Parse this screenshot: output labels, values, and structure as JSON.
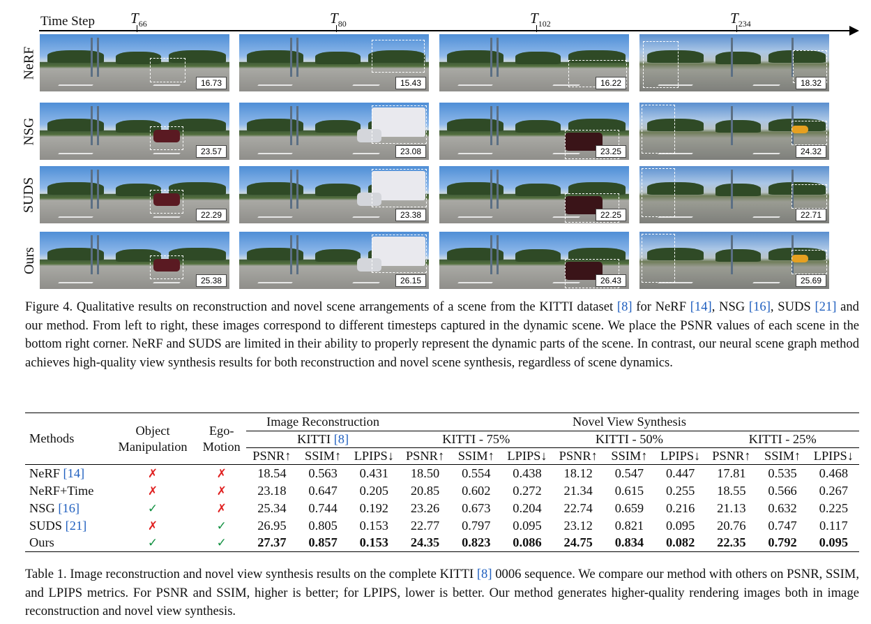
{
  "figure": {
    "axis_label": "Time Step",
    "timesteps": [
      {
        "letter": "T",
        "sub": "66"
      },
      {
        "letter": "T",
        "sub": "80"
      },
      {
        "letter": "T",
        "sub": "102"
      },
      {
        "letter": "T",
        "sub": "234"
      }
    ],
    "rows": [
      {
        "method": "NeRF",
        "psnr": [
          "16.73",
          "15.43",
          "16.22",
          "18.32"
        ]
      },
      {
        "method": "NSG",
        "psnr": [
          "23.57",
          "23.08",
          "23.25",
          "24.32"
        ]
      },
      {
        "method": "SUDS",
        "psnr": [
          "22.29",
          "23.38",
          "22.25",
          "22.71"
        ]
      },
      {
        "method": "Ours",
        "psnr": [
          "25.38",
          "26.15",
          "26.43",
          "25.69"
        ]
      }
    ],
    "caption": {
      "p1": "Figure 4. Qualitative results on reconstruction and novel scene arrangements of a scene from the KITTI dataset ",
      "c1": "[8]",
      "p2": " for NeRF ",
      "c2": "[14]",
      "p3": ", NSG ",
      "c3": "[16]",
      "p4": ", SUDS ",
      "c4": "[21]",
      "p5": " and our method. From left to right, these images correspond to different timesteps captured in the dynamic scene. We place the PSNR values of each scene in the bottom right corner. NeRF and SUDS are limited in their ability to properly represent the dynamic parts of the scene. In contrast, our neural scene graph method achieves high-quality view synthesis results for both reconstruction and novel scene synthesis, regardless of scene dynamics."
    }
  },
  "table": {
    "headers": {
      "methods": "Methods",
      "object_manipulation_1": "Object",
      "object_manipulation_2": "Manipulation",
      "ego_motion_1": "Ego-",
      "ego_motion_2": "Motion",
      "image_reconstruction": "Image Reconstruction",
      "novel_view_synthesis": "Novel View Synthesis",
      "kitti": "KITTI ",
      "kitti_cite": "[8]",
      "kitti_75": "KITTI - 75%",
      "kitti_50": "KITTI - 50%",
      "kitti_25": "KITTI - 25%",
      "psnr": "PSNR↑",
      "ssim": "SSIM↑",
      "lpips": "LPIPS↓"
    },
    "rows": [
      {
        "method": "NeRF ",
        "cite": "[14]",
        "obj": "✗",
        "ego": "✗",
        "values": [
          "18.54",
          "0.563",
          "0.431",
          "18.50",
          "0.554",
          "0.438",
          "18.12",
          "0.547",
          "0.447",
          "17.81",
          "0.535",
          "0.468"
        ]
      },
      {
        "method": "NeRF+Time",
        "cite": "",
        "obj": "✗",
        "ego": "✗",
        "values": [
          "23.18",
          "0.647",
          "0.205",
          "20.85",
          "0.602",
          "0.272",
          "21.34",
          "0.615",
          "0.255",
          "18.55",
          "0.566",
          "0.267"
        ]
      },
      {
        "method": "NSG ",
        "cite": "[16]",
        "obj": "✓",
        "ego": "✗",
        "values": [
          "25.34",
          "0.744",
          "0.192",
          "23.26",
          "0.673",
          "0.204",
          "22.74",
          "0.659",
          "0.216",
          "21.13",
          "0.632",
          "0.225"
        ]
      },
      {
        "method": "SUDS ",
        "cite": "[21]",
        "obj": "✗",
        "ego": "✓",
        "values": [
          "26.95",
          "0.805",
          "0.153",
          "22.77",
          "0.797",
          "0.095",
          "23.12",
          "0.821",
          "0.095",
          "20.76",
          "0.747",
          "0.117"
        ]
      },
      {
        "method": "Ours",
        "cite": "",
        "obj": "✓",
        "ego": "✓",
        "values": [
          "27.37",
          "0.857",
          "0.153",
          "24.35",
          "0.823",
          "0.086",
          "24.75",
          "0.834",
          "0.082",
          "22.35",
          "0.792",
          "0.095"
        ]
      }
    ],
    "caption": {
      "p1": "Table 1. Image reconstruction and novel view synthesis results on the complete KITTI ",
      "c1": "[8]",
      "p2": " 0006 sequence. We compare our method with others on PSNR, SSIM, and LPIPS metrics. For PSNR and SSIM, higher is better; for LPIPS, lower is better. Our method generates higher-quality rendering images both in image reconstruction and novel view synthesis."
    }
  },
  "colors": {
    "citation": "#1f5fbf",
    "check": "#109040",
    "cross": "#e02020"
  }
}
